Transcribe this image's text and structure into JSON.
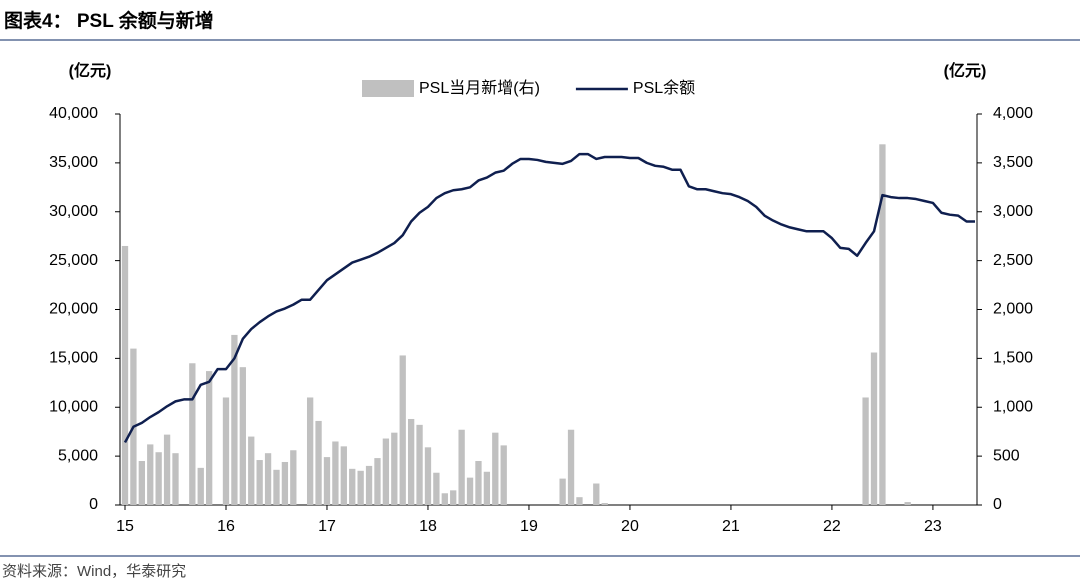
{
  "title": "图表4：  PSL 余额与新增",
  "source": "资料来源：Wind，华泰研究",
  "chart_data": {
    "type": "bar-line",
    "y_unit": "(亿元)",
    "y2_unit": "(亿元)",
    "categories": [
      "15",
      null,
      null,
      null,
      null,
      null,
      null,
      null,
      null,
      null,
      null,
      null,
      "16",
      null,
      null,
      null,
      null,
      null,
      null,
      null,
      null,
      null,
      null,
      null,
      "17",
      null,
      null,
      null,
      null,
      null,
      null,
      null,
      null,
      null,
      null,
      null,
      "18",
      null,
      null,
      null,
      null,
      null,
      null,
      null,
      null,
      null,
      null,
      null,
      "19",
      null,
      null,
      null,
      null,
      null,
      null,
      null,
      null,
      null,
      null,
      null,
      "20",
      null,
      null,
      null,
      null,
      null,
      null,
      null,
      null,
      null,
      null,
      null,
      "21",
      null,
      null,
      null,
      null,
      null,
      null,
      null,
      null,
      null,
      null,
      null,
      "22",
      null,
      null,
      null,
      null,
      null,
      null,
      null,
      null,
      null,
      null,
      null,
      "23",
      null,
      null,
      null,
      null,
      null
    ],
    "series": [
      {
        "name": "PSL当月新增(右)",
        "type": "bar",
        "axis": "y2",
        "color": "#c0c0c0",
        "values": [
          2650,
          1600,
          450,
          620,
          540,
          720,
          530,
          0,
          1450,
          380,
          1370,
          0,
          1100,
          1740,
          1410,
          700,
          460,
          530,
          360,
          440,
          560,
          0,
          1100,
          860,
          490,
          650,
          600,
          370,
          350,
          400,
          480,
          680,
          740,
          1530,
          880,
          820,
          590,
          330,
          120,
          150,
          770,
          280,
          450,
          340,
          740,
          610,
          0,
          0,
          0,
          0,
          0,
          0,
          270,
          770,
          80,
          0,
          220,
          20,
          0,
          0,
          0,
          0,
          0,
          0,
          0,
          0,
          0,
          0,
          0,
          0,
          0,
          0,
          0,
          0,
          0,
          0,
          0,
          0,
          0,
          0,
          0,
          0,
          0,
          0,
          0,
          0,
          0,
          0,
          1100,
          1560,
          3690,
          0,
          0,
          30,
          0,
          0,
          0,
          0,
          0,
          0,
          0,
          0
        ]
      },
      {
        "name": "PSL余额",
        "type": "line",
        "color": "#0f1f4f",
        "values": [
          6400,
          8000,
          8400,
          9000,
          9500,
          10100,
          10600,
          10800,
          10800,
          12300,
          12600,
          13900,
          13900,
          15000,
          17000,
          18000,
          18700,
          19300,
          19800,
          20100,
          20500,
          21000,
          21000,
          22000,
          23000,
          23600,
          24200,
          24800,
          25100,
          25400,
          25800,
          26300,
          26800,
          27600,
          29000,
          29900,
          30500,
          31400,
          31900,
          32200,
          32300,
          32500,
          33200,
          33500,
          34000,
          34200,
          34900,
          35400,
          35400,
          35300,
          35100,
          35000,
          34900,
          35200,
          35900,
          35900,
          35400,
          35600,
          35600,
          35600,
          35500,
          35500,
          35000,
          34700,
          34600,
          34300,
          34300,
          32600,
          32300,
          32300,
          32100,
          31900,
          31800,
          31500,
          31100,
          30500,
          29600,
          29100,
          28700,
          28400,
          28200,
          28000,
          28000,
          28000,
          27300,
          26300,
          26200,
          25500,
          26800,
          28000,
          31700,
          31500,
          31400,
          31400,
          31300,
          31100,
          30900,
          29900,
          29700,
          29600,
          29000,
          29000
        ]
      }
    ],
    "ylim": [
      0,
      40000
    ],
    "yticks": [
      0,
      {
        "value": 5000,
        "label": "5,000"
      },
      {
        "value": 10000,
        "label": "10,000"
      },
      {
        "value": 15000,
        "label": "15,000"
      },
      {
        "value": 20000,
        "label": "20,000"
      },
      {
        "value": 25000,
        "label": "25,000"
      },
      {
        "value": 30000,
        "label": "30,000"
      },
      {
        "value": 35000,
        "label": "35,000"
      },
      {
        "value": 40000,
        "label": "40,000"
      }
    ],
    "y2lim": [
      0,
      4000
    ],
    "y2ticks": [
      0,
      500,
      {
        "value": 1000,
        "label": "1,000"
      },
      {
        "value": 1500,
        "label": "1,500"
      },
      {
        "value": 2000,
        "label": "2,000"
      },
      {
        "value": 2500,
        "label": "2,500"
      },
      {
        "value": 3000,
        "label": "3,000"
      },
      {
        "value": 3500,
        "label": "3,500"
      },
      {
        "value": 4000,
        "label": "4,000"
      }
    ],
    "legend": "top"
  }
}
